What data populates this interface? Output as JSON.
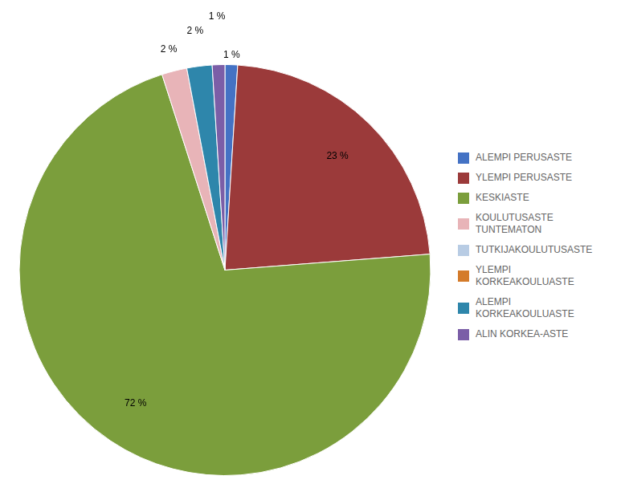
{
  "chart_data": {
    "type": "pie",
    "categories": [
      "ALEMPI PERUSASTE",
      "YLEMPI PERUSASTE",
      "KESKIASTE",
      "KOULUTUSASTE\nTUNTEMATON",
      "TUTKIJAKOULUTUSASTE",
      "YLEMPI\nKORKEAKOULUASTE",
      "ALEMPI\nKORKEAKOULUASTE",
      "ALIN KORKEA-ASTE"
    ],
    "values": [
      1,
      23,
      72,
      2,
      0,
      0,
      2,
      1
    ],
    "value_labels": [
      "1 %",
      "23 %",
      "72 %",
      "2 %",
      null,
      null,
      "2 %",
      "1 %"
    ],
    "colors": [
      "#4472C4",
      "#9B3A3A",
      "#7B9E3C",
      "#E8B4B8",
      "#B8CCE4",
      "#D47B2A",
      "#2E86AB",
      "#7B5EA7"
    ],
    "data_labels": true,
    "legend": "right"
  }
}
